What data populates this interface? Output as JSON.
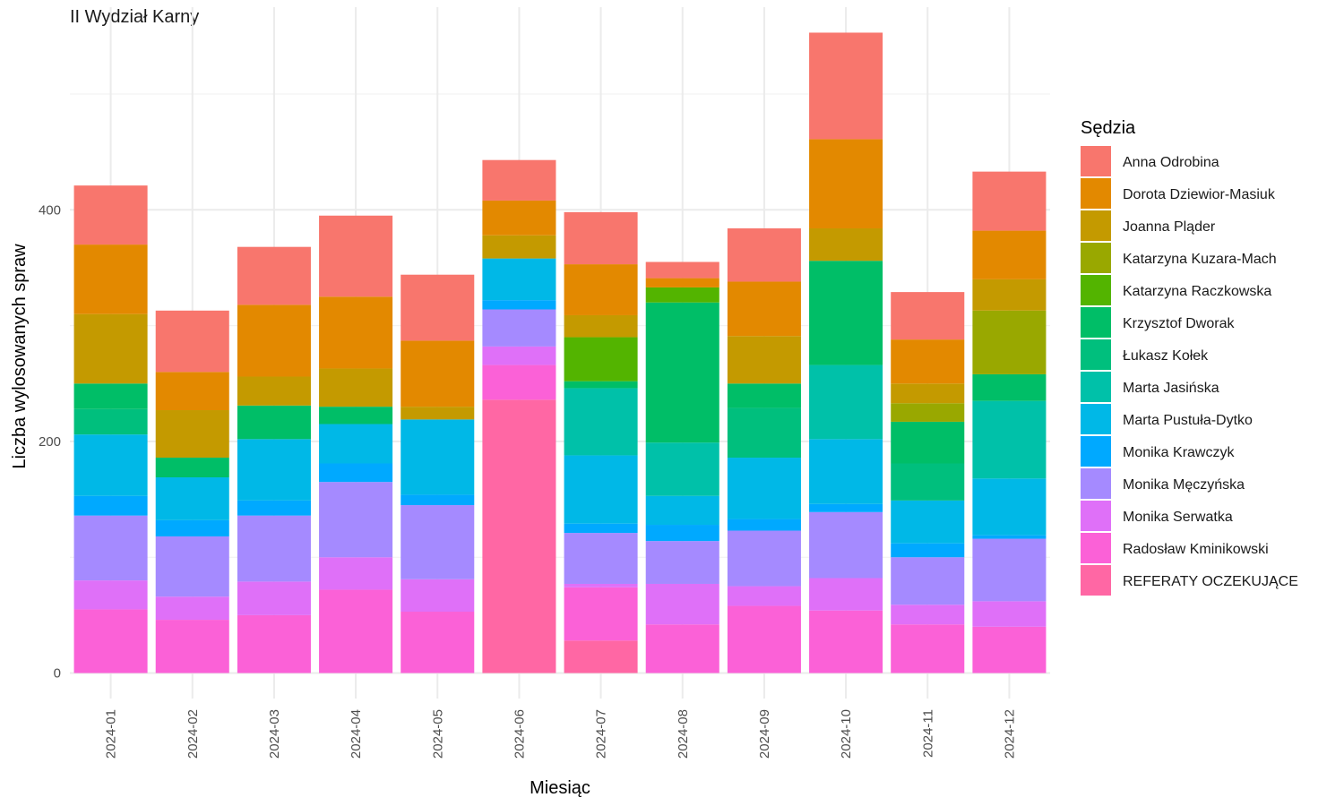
{
  "chart_data": {
    "type": "bar",
    "stacked": true,
    "title": "II Wydział Karny",
    "xlabel": "Miesiąc",
    "ylabel": "Liczba wylosowanych spraw",
    "ylim": [
      -22,
      575
    ],
    "y_ticks": [
      0,
      200,
      400
    ],
    "grid": true,
    "legend_title": "Sędzia",
    "legend_position": "right",
    "categories": [
      "2024-01",
      "2024-02",
      "2024-03",
      "2024-04",
      "2024-05",
      "2024-06",
      "2024-07",
      "2024-08",
      "2024-09",
      "2024-10",
      "2024-11",
      "2024-12"
    ],
    "series": [
      {
        "name": "REFERATY OCZEKUJĄCE",
        "color": "#FF67A4",
        "values": [
          0,
          0,
          0,
          0,
          0,
          236,
          28,
          0,
          0,
          0,
          0,
          0
        ]
      },
      {
        "name": "Radosław Kminikowski",
        "color": "#FB61D7",
        "values": [
          55,
          46,
          50,
          72,
          53,
          30,
          46,
          42,
          58,
          54,
          42,
          40
        ]
      },
      {
        "name": "Monika Serwatka",
        "color": "#DF70F8",
        "values": [
          25,
          20,
          29,
          28,
          28,
          16,
          3,
          35,
          17,
          28,
          17,
          22
        ]
      },
      {
        "name": "Monika Męczyńska",
        "color": "#A58AFF",
        "values": [
          56,
          52,
          57,
          65,
          64,
          32,
          44,
          37,
          48,
          57,
          41,
          54
        ]
      },
      {
        "name": "Monika Krawczyk",
        "color": "#00A9FF",
        "values": [
          17,
          14,
          13,
          16,
          9,
          8,
          8,
          14,
          10,
          7,
          12,
          3
        ]
      },
      {
        "name": "Marta Pustuła-Dytko",
        "color": "#00B8E7",
        "values": [
          53,
          37,
          53,
          34,
          65,
          36,
          59,
          25,
          53,
          56,
          37,
          49
        ]
      },
      {
        "name": "Marta Jasińska",
        "color": "#00C1A9",
        "values": [
          0,
          0,
          0,
          0,
          0,
          0,
          58,
          46,
          0,
          64,
          0,
          67
        ]
      },
      {
        "name": "Łukasz Kołek",
        "color": "#00BF7D",
        "values": [
          22,
          0,
          0,
          0,
          0,
          0,
          0,
          0,
          43,
          0,
          32,
          0
        ]
      },
      {
        "name": "Krzysztof Dworak",
        "color": "#00BE67",
        "values": [
          22,
          17,
          29,
          15,
          0,
          0,
          6,
          121,
          21,
          90,
          36,
          23
        ]
      },
      {
        "name": "Katarzyna Raczkowska",
        "color": "#53B400",
        "values": [
          0,
          0,
          0,
          0,
          0,
          0,
          38,
          13,
          0,
          0,
          0,
          0
        ]
      },
      {
        "name": "Katarzyna Kuzara-Mach",
        "color": "#99A800",
        "values": [
          0,
          0,
          0,
          0,
          0,
          0,
          0,
          0,
          0,
          0,
          16,
          55
        ]
      },
      {
        "name": "Joanna Pląder",
        "color": "#C49A00",
        "values": [
          60,
          41,
          25,
          33,
          11,
          20,
          19,
          0,
          41,
          28,
          17,
          27
        ]
      },
      {
        "name": "Dorota Dziewior-Masiuk",
        "color": "#E38900",
        "values": [
          60,
          33,
          62,
          62,
          57,
          30,
          44,
          8,
          47,
          77,
          38,
          42
        ]
      },
      {
        "name": "Anna Odrobina",
        "color": "#F8766D",
        "values": [
          51,
          53,
          50,
          70,
          57,
          35,
          45,
          14,
          46,
          92,
          41,
          51
        ]
      }
    ],
    "legend_order": [
      "Anna Odrobina",
      "Dorota Dziewior-Masiuk",
      "Joanna Pląder",
      "Katarzyna Kuzara-Mach",
      "Katarzyna Raczkowska",
      "Krzysztof Dworak",
      "Łukasz Kołek",
      "Marta Jasińska",
      "Marta Pustuła-Dytko",
      "Monika Krawczyk",
      "Monika Męczyńska",
      "Monika Serwatka",
      "Radosław Kminikowski",
      "REFERATY OCZEKUJĄCE"
    ]
  }
}
